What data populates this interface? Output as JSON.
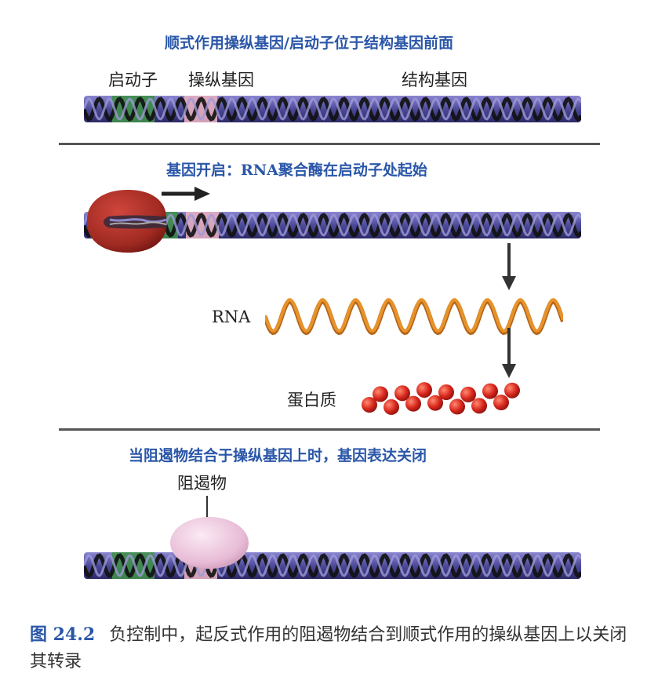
{
  "panel1": {
    "title": "顺式作用操纵基因/启动子位于结构基因前面",
    "promoter_label": "启动子",
    "operator_label": "操纵基因",
    "structural_label": "结构基因"
  },
  "panel2": {
    "title": "基因开启：RNA聚合酶在启动子处起始",
    "rna_label": "RNA",
    "protein_label": "蛋白质"
  },
  "panel3": {
    "title": "当阻遏物结合于操纵基因上时，基因表达关闭",
    "repressor_label": "阻遏物"
  },
  "caption": {
    "figure_number": "图 24.2",
    "text": "负控制中，起反式作用的阻遏物结合到顺式作用的操纵基因上以关闭其转录"
  },
  "colors": {
    "title_blue": "#2a56a8",
    "dna_purple": "#5a56a8",
    "promoter_green": "#3f8f4a",
    "operator_pink": "#e6aec0",
    "polymerase_red": "#a82a22",
    "rna_orange": "#e7932a",
    "protein_red": "#d8261c",
    "repressor_pink": "#ecc6dc"
  }
}
